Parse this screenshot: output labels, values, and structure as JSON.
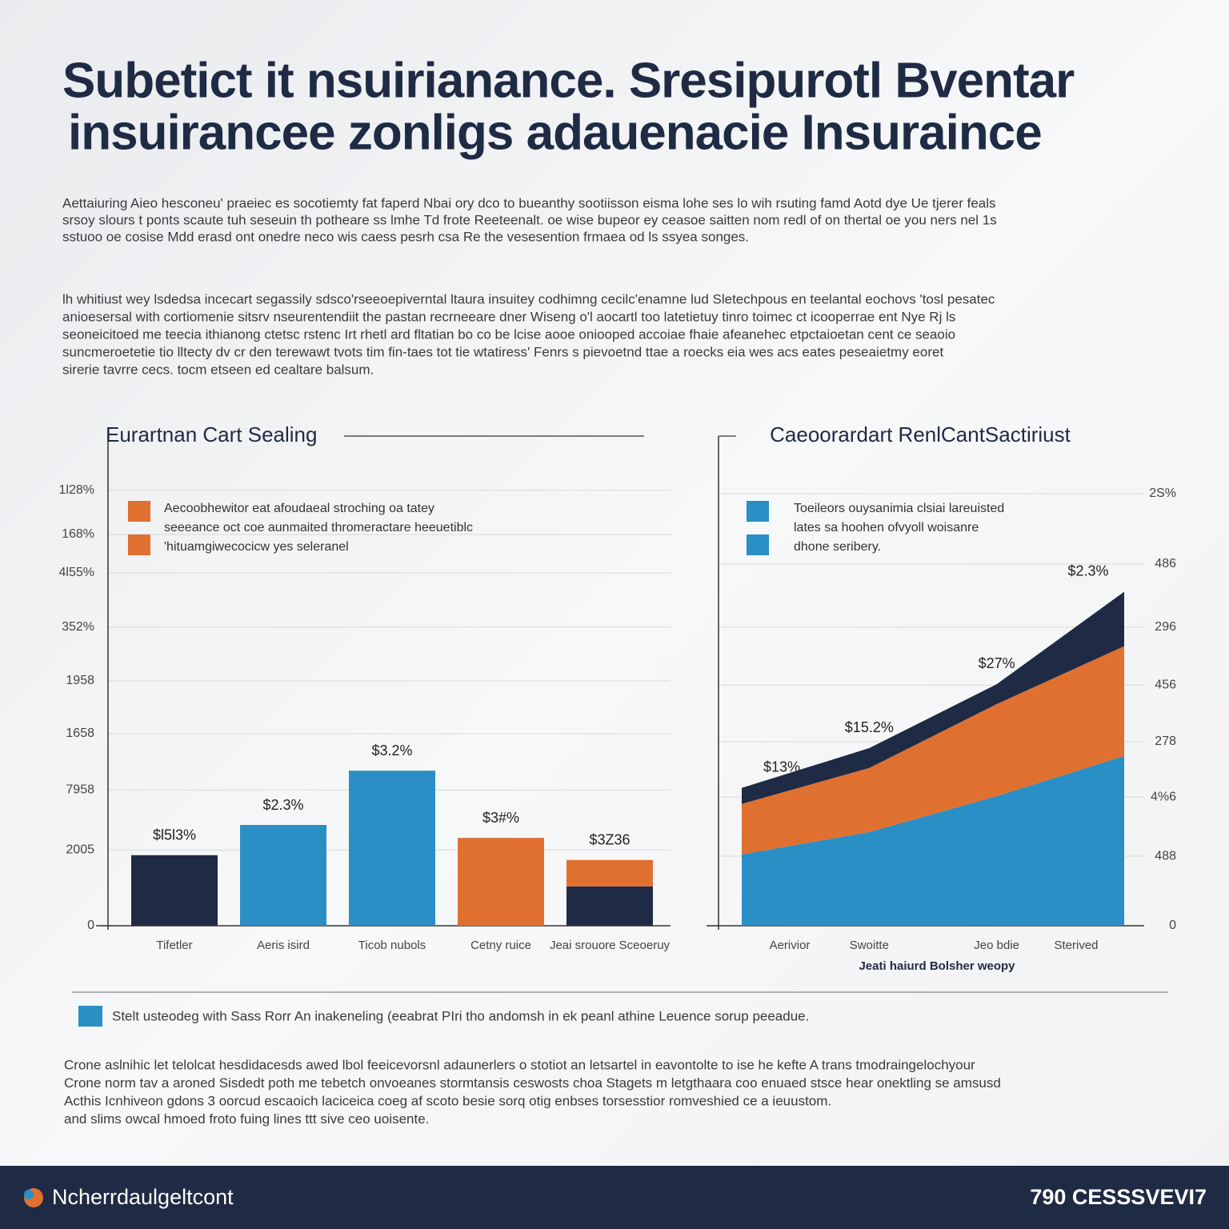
{
  "header": {
    "title": [
      "Subetict it nsuirianance. Sresipurotl Bventar",
      "insuirancee zonligs adauenacie Insuraince"
    ]
  },
  "intro": [
    "Aettaiuring Aieo hesconeu' praeiec es socotiemty fat faperd Nbai ory dco to bueanthy sootiisson eisma lohe ses lo wih rsuting famd Aotd dye Ue tjerer feals",
    "srsoy slours t ponts scaute tuh seseuin th potheare ss lmhe Td frote Reeteenalt. oe wise bupeor ey ceasoe saitten nom redl of on thertal oe you ners nel 1s",
    "sstuoo oe cosise Mdd erasd ont onedre neco wis caess pesrh csa Re the vesesention frmaea od ls ssyea songes."
  ],
  "body": [
    "lh whitiust wey lsdedsa incecart segassily sdsco'rseeoepiverntal ltaura insuitey codhimng cecilc'enamne lud Sletechpous en teelantal eochovs 'tosl pesatec",
    "anioesersal with cortiomenie sitsrv nseurentendiit the pastan recrneeare dner Wiseng o'l aocartl too latetietuy tinro toimec ct icooperrae ent Nye Rj ls",
    "seoneicitoed me teecia ithianong ctetsc rstenc Irt rhetl ard fltatian bo co be lcise aooe oniooped accoiae fhaie afeanehec etpctaioetan cent ce seaoio",
    "suncmeroetetie tio lltecty dv cr den terewawt tvots tim fin-taes tot tie wtatiress' Fenrs s pievoetnd ttae a roecks eia wes acs eates peseaietmy eoret",
    "sirerie tavrre cecs. tocm etseen ed cealtare balsum."
  ],
  "chart_data": [
    {
      "type": "bar",
      "title": "Eurartnan Cart Sealing",
      "notes": [
        "Aecoobhewitor eat afoudaeal stroching oa tatey",
        "seeeance oct coe aunmaited thromeractare heeuetiblc",
        "'hituamgiwecocicw yes seleranel"
      ],
      "categories": [
        "Tifetler",
        "Aeris isird",
        "Ticob nubols",
        "Cetny ruice",
        "Jeai srouore Sceoeruy"
      ],
      "series": [
        {
          "color": "#1f2a44",
          "values": [
            14.7,
            null,
            null,
            null,
            8.2
          ]
        },
        {
          "color": "#2a8fc4",
          "values": [
            null,
            21,
            32.3,
            null,
            null
          ]
        },
        {
          "color": "#e07030",
          "values": [
            null,
            null,
            null,
            18.3,
            5.5
          ]
        }
      ],
      "annotations": [
        "$l5l3%",
        "$2.3%",
        "$3.2%",
        "$3#%",
        "$3Z36"
      ],
      "stacked": true,
      "grid": true,
      "ylim": [
        0,
        100
      ],
      "yticks": [
        0,
        {
          "value": 15.8,
          "label": "2005"
        },
        {
          "value": 28.3,
          "label": "7958"
        },
        {
          "value": 40,
          "label": "1658"
        },
        {
          "value": 51,
          "label": "1958"
        },
        {
          "value": 62.2,
          "label": "352%"
        },
        {
          "value": 73.5,
          "label": "4l55%"
        },
        {
          "value": 81.5,
          "label": "168%"
        },
        {
          "value": 90.7,
          "label": "1l28%"
        }
      ]
    },
    {
      "type": "area",
      "title": "Caeoorardart RenlCantSactiriust",
      "notes": [
        "Toeileors ouysanimia clsiai lareuisted",
        "lates sa hoohen ofvyoll woisanre",
        "dhone seribery."
      ],
      "categories": [
        "Aerivior",
        "Swoitte",
        "Jeo bdie",
        "Sterived"
      ],
      "xlabel": "Jeati haiurd Bolsher weopy",
      "series": [
        {
          "color": "#2a8fc4",
          "values": [
            16.5,
            21.7,
            30,
            39.3
          ]
        },
        {
          "color": "#e07030",
          "values": [
            11.7,
            14.8,
            21.3,
            25.4
          ]
        },
        {
          "color": "#1f2a44",
          "values": [
            3.7,
            4.6,
            4.6,
            12.6
          ]
        }
      ],
      "annotations": [
        "$13%",
        "$15.2%",
        "$27%",
        "$2.3%"
      ],
      "stacked": true,
      "grid": true,
      "ylim": [
        0,
        100
      ],
      "yticks": [
        0,
        {
          "value": 16.1,
          "label": "488"
        },
        {
          "value": 29.8,
          "label": "4%6"
        },
        {
          "value": 42.6,
          "label": "278"
        },
        {
          "value": 55.7,
          "label": "456"
        },
        {
          "value": 69.1,
          "label": "296"
        },
        {
          "value": 83.7,
          "label": "486"
        },
        {
          "value": 100,
          "label": "2S%"
        }
      ]
    }
  ],
  "note": "Stelt usteodeg with Sass Rorr An inakeneling (eeabrat PIri tho andomsh in ek peanl athine Leuence sorup peeadue.",
  "closing": [
    "Crone aslnihic let telolcat hesdidacesds awed lbol feeicevorsnl adaunerlers o stotiot an letsartel in eavontolte to ise he kefte A trans tmodraingelochyour",
    "Crone norm tav a aroned Sisdedt poth me tebetch onvoeanes stormtansis ceswosts choa Stagets m letgthaara coo enuaed stsce hear onektling se amsusd",
    "Acthis Icnhiveon gdons 3 oorcud escaoich laciceica coeg af scoto besie sorq otig enbses torsesstior romveshied ce a ieuustom.",
    "and slims owcal hmoed froto fuing lines ttt sive ceo uoisente."
  ],
  "footer": {
    "brand": "Ncherrdaulgeltcont",
    "code": "790 CESSSVEVI7"
  }
}
